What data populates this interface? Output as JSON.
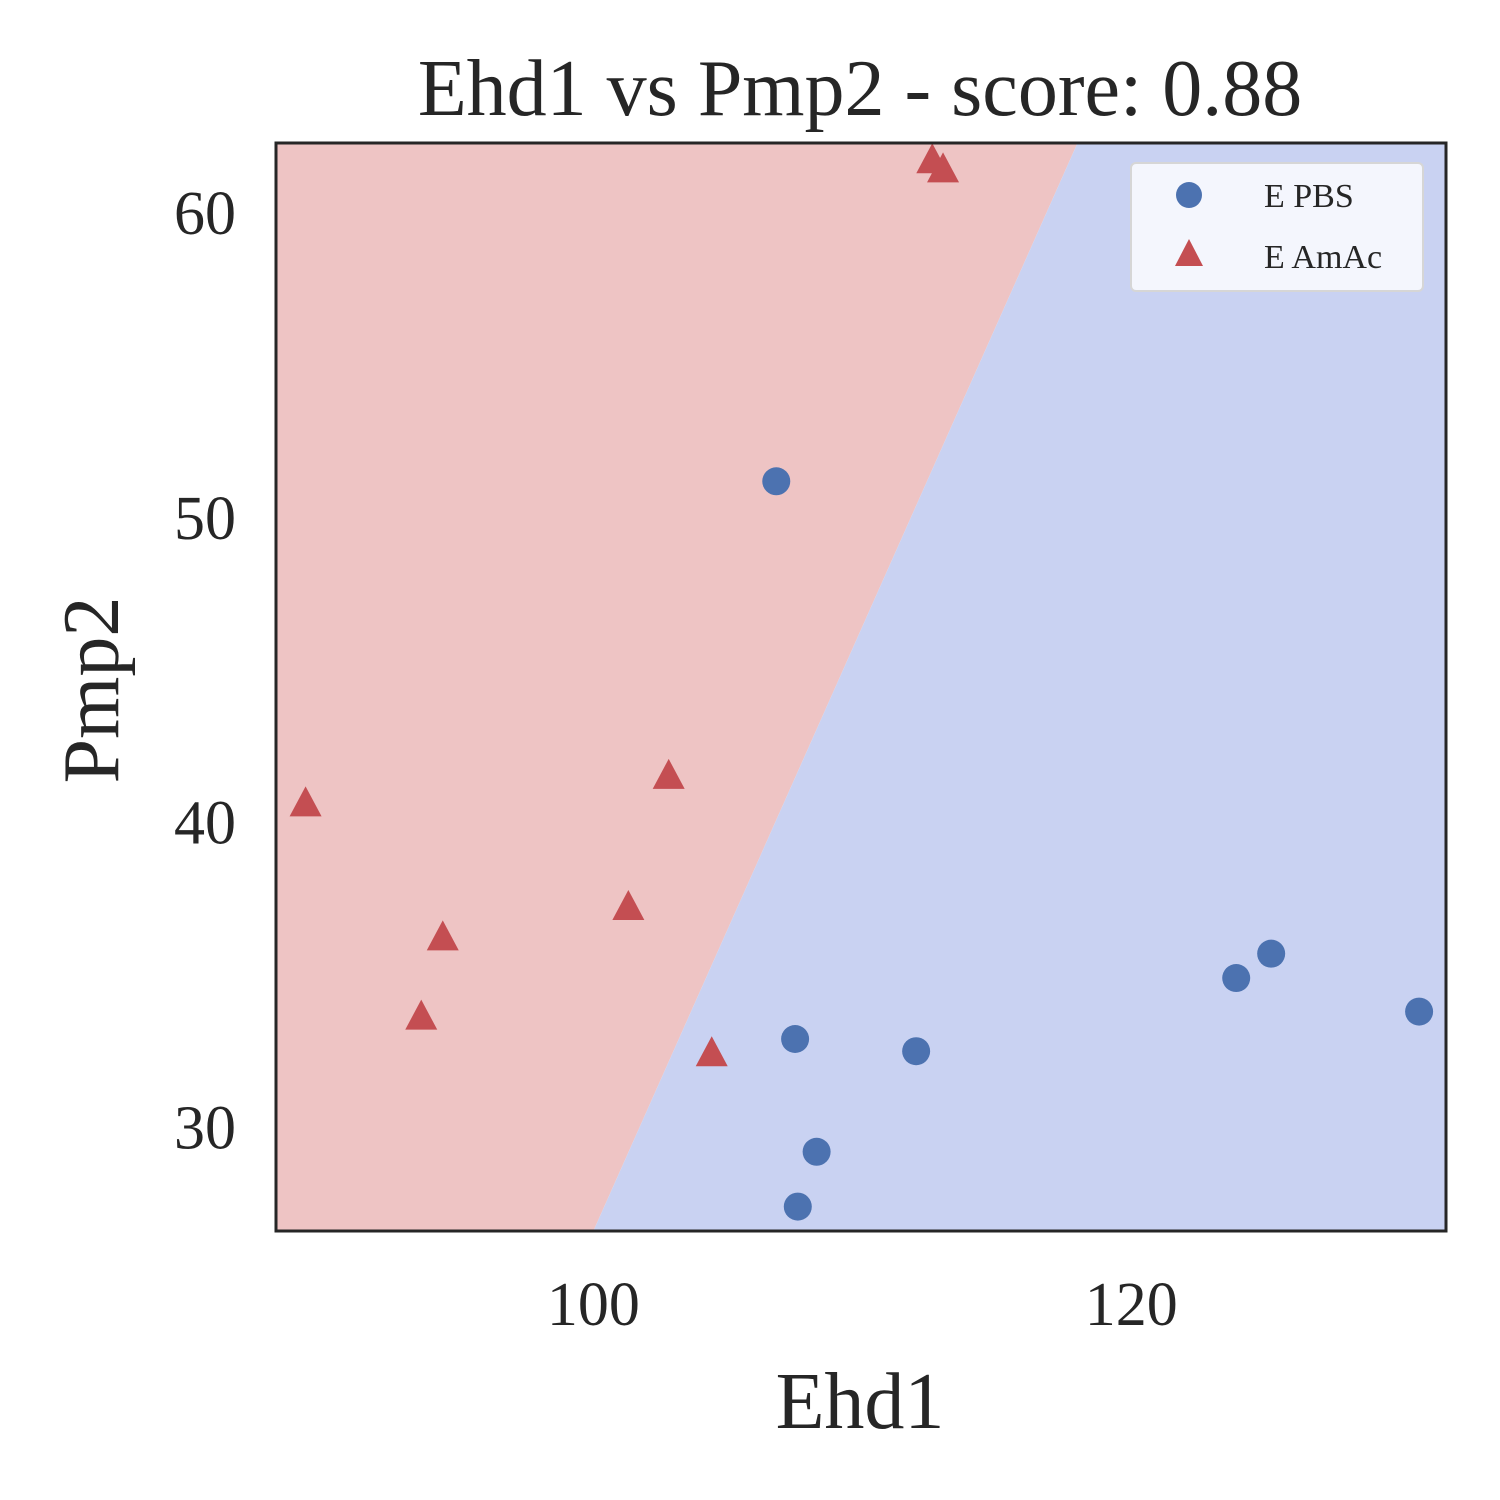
{
  "chart_data": {
    "type": "scatter",
    "title": "Ehd1 vs Pmp2 - score: 0.88",
    "xlabel": "Ehd1",
    "ylabel": "Pmp2",
    "xlim": [
      88.2,
      131.7
    ],
    "ylim": [
      26.6,
      62.3
    ],
    "xticks": [
      100,
      120
    ],
    "yticks": [
      30,
      40,
      50,
      60
    ],
    "grid": false,
    "legend_position": "top-right",
    "decision_regions": {
      "boundary": [
        [
          100.0,
          26.6
        ],
        [
          118.0,
          62.3
        ]
      ],
      "left_class": "E AmAc",
      "right_class": "E PBS",
      "left_color": "#eec4c4",
      "right_color": "#c9d2f2"
    },
    "series": [
      {
        "name": "E PBS",
        "marker": "circle",
        "color": "#4c72b0",
        "points": [
          [
            106.8,
            51.2
          ],
          [
            107.5,
            32.9
          ],
          [
            108.3,
            29.2
          ],
          [
            107.6,
            27.4
          ],
          [
            112.0,
            32.5
          ],
          [
            123.9,
            34.9
          ],
          [
            125.2,
            35.7
          ],
          [
            130.7,
            33.8
          ]
        ]
      },
      {
        "name": "E AmAc",
        "marker": "triangle",
        "color": "#c44e52",
        "points": [
          [
            112.6,
            61.7
          ],
          [
            113.0,
            61.4
          ],
          [
            89.3,
            40.6
          ],
          [
            102.8,
            41.5
          ],
          [
            101.3,
            37.2
          ],
          [
            94.4,
            36.2
          ],
          [
            93.6,
            33.6
          ],
          [
            104.4,
            32.4
          ]
        ]
      }
    ]
  }
}
